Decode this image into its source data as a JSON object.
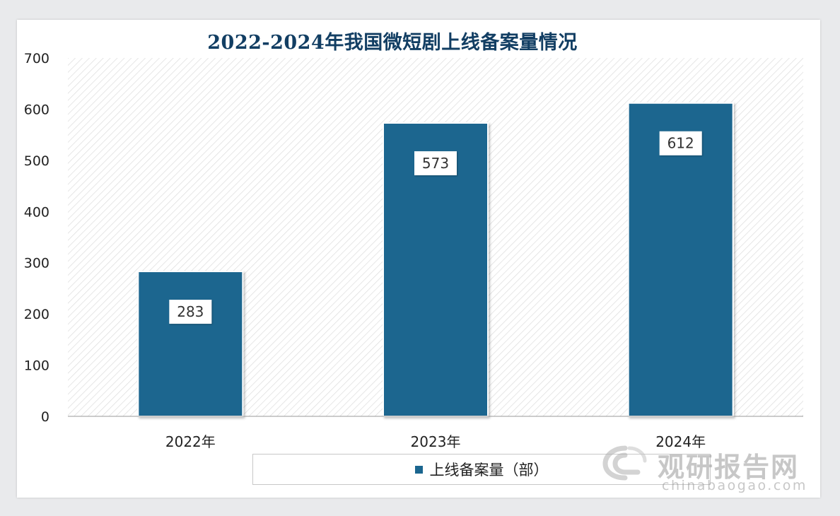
{
  "colors": {
    "bar": "#1b668f",
    "title": "#123e63",
    "axis_text": "#222222"
  },
  "watermark": {
    "name": "观研报告网",
    "url": "chinabaogao.com",
    "icon": "watermark-logo-icon"
  },
  "chart_data": {
    "type": "bar",
    "title": "2022-2024年我国微短剧上线备案量情况",
    "categories": [
      "2022年",
      "2023年",
      "2024年"
    ],
    "series": [
      {
        "name": "上线备案量（部）",
        "values": [
          283,
          573,
          612
        ]
      }
    ],
    "data_labels": [
      "283",
      "573",
      "612"
    ],
    "y_ticks": [
      "0",
      "100",
      "200",
      "300",
      "400",
      "500",
      "600",
      "700"
    ],
    "ylim": [
      0,
      700
    ],
    "grid": false,
    "plot_background": "diagonal-hatch",
    "legend_position": "bottom"
  }
}
